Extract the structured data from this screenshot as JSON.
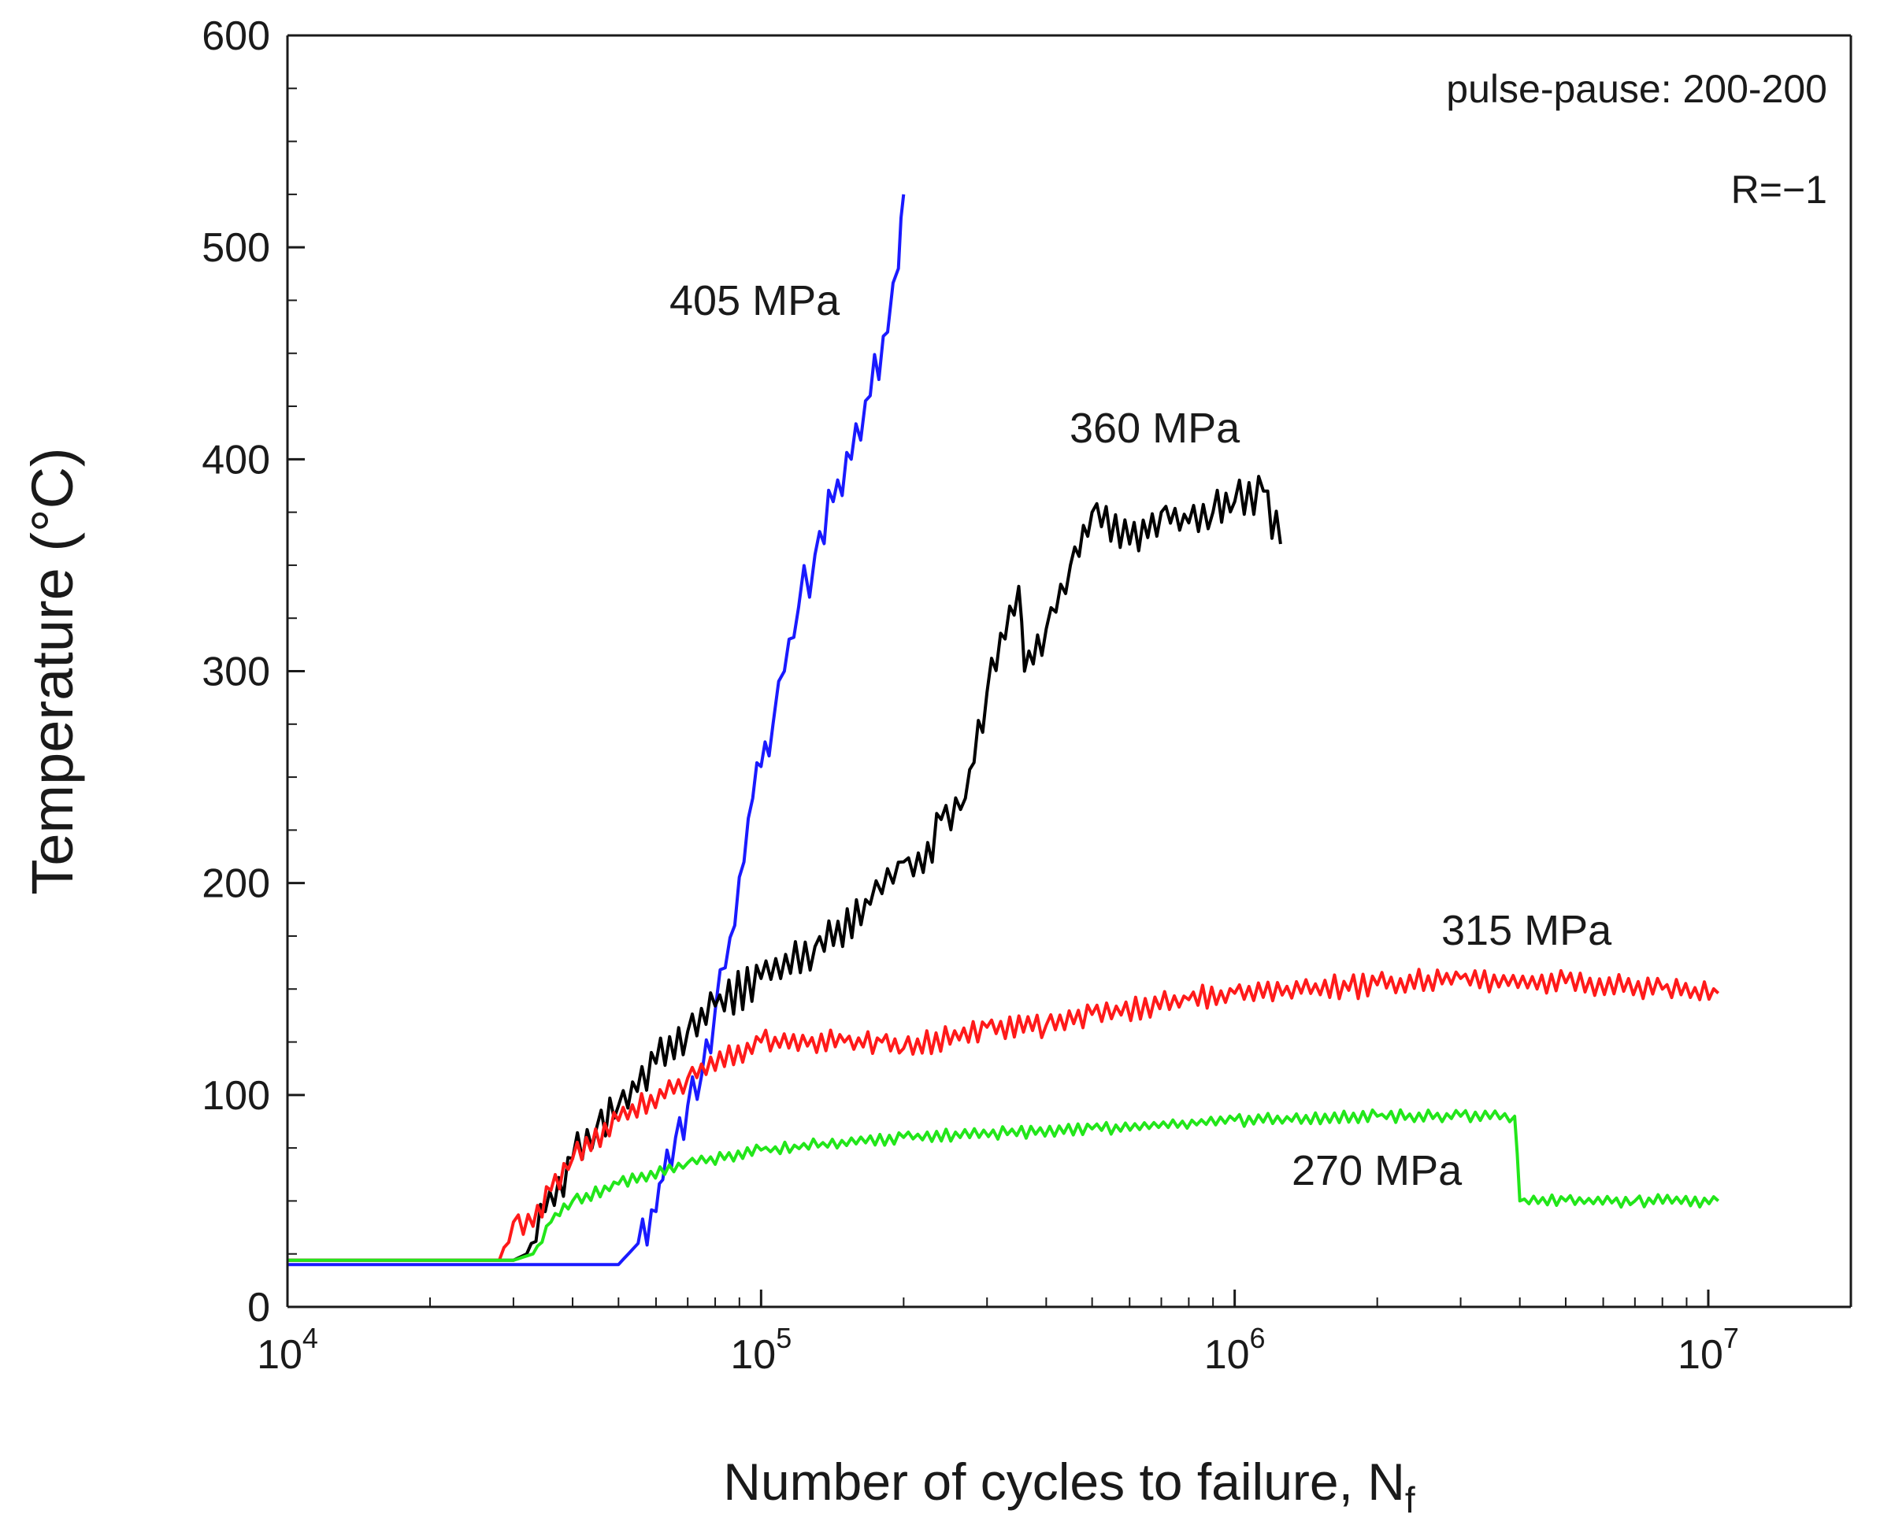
{
  "chart_data": {
    "type": "line",
    "title": "",
    "xlabel": "Number of cycles to failure, N",
    "xlabel_subscript": "f",
    "ylabel": "Temperature (°C)",
    "xscale": "log",
    "xlim": [
      10000,
      20000000
    ],
    "ylim": [
      0,
      600
    ],
    "x_ticks": [
      {
        "base": "10",
        "exp": "4"
      },
      {
        "base": "10",
        "exp": "5"
      },
      {
        "base": "10",
        "exp": "6"
      },
      {
        "base": "10",
        "exp": "7"
      }
    ],
    "y_ticks": [
      "0",
      "100",
      "200",
      "300",
      "400",
      "500",
      "600"
    ],
    "grid": false,
    "annotations": [
      "pulse-pause: 200-200",
      "R=−1"
    ],
    "series": [
      {
        "name": "405 MPa",
        "color": "#1a1aff",
        "points": [
          [
            10000,
            20
          ],
          [
            20000,
            20
          ],
          [
            30000,
            20
          ],
          [
            40000,
            20
          ],
          [
            50000,
            20
          ],
          [
            55000,
            30
          ],
          [
            60000,
            45
          ],
          [
            62000,
            60
          ],
          [
            66000,
            80
          ],
          [
            70000,
            95
          ],
          [
            75000,
            110
          ],
          [
            80000,
            140
          ],
          [
            84000,
            160
          ],
          [
            88000,
            180
          ],
          [
            92000,
            210
          ],
          [
            96000,
            240
          ],
          [
            100000,
            255
          ],
          [
            106000,
            275
          ],
          [
            112000,
            300
          ],
          [
            120000,
            330
          ],
          [
            130000,
            355
          ],
          [
            142000,
            380
          ],
          [
            155000,
            400
          ],
          [
            170000,
            430
          ],
          [
            185000,
            460
          ],
          [
            195000,
            490
          ],
          [
            200000,
            525
          ]
        ],
        "noise": 12,
        "label_x": 340,
        "label_y": 490
      },
      {
        "name": "360 MPa",
        "color": "#000000",
        "points": [
          [
            10000,
            22
          ],
          [
            20000,
            22
          ],
          [
            30000,
            22
          ],
          [
            32000,
            25
          ],
          [
            35000,
            45
          ],
          [
            40000,
            70
          ],
          [
            45000,
            85
          ],
          [
            50000,
            95
          ],
          [
            60000,
            115
          ],
          [
            70000,
            130
          ],
          [
            80000,
            142
          ],
          [
            100000,
            155
          ],
          [
            130000,
            170
          ],
          [
            170000,
            190
          ],
          [
            180000,
            195
          ],
          [
            190000,
            200
          ],
          [
            200000,
            210
          ],
          [
            220000,
            205
          ],
          [
            240000,
            230
          ],
          [
            270000,
            240
          ],
          [
            300000,
            290
          ],
          [
            350000,
            340
          ],
          [
            360000,
            300
          ],
          [
            400000,
            320
          ],
          [
            450000,
            350
          ],
          [
            500000,
            375
          ],
          [
            600000,
            360
          ],
          [
            700000,
            375
          ],
          [
            800000,
            370
          ],
          [
            900000,
            375
          ],
          [
            1000000,
            380
          ],
          [
            1150000,
            385
          ],
          [
            1250000,
            360
          ]
        ],
        "noise": 10,
        "label_x": 1350000,
        "label_y": 400
      },
      {
        "name": "315 MPa",
        "color": "#ff1a1a",
        "points": [
          [
            10000,
            22
          ],
          [
            20000,
            22
          ],
          [
            28000,
            22
          ],
          [
            30000,
            40
          ],
          [
            33000,
            38
          ],
          [
            36000,
            55
          ],
          [
            40000,
            70
          ],
          [
            50000,
            88
          ],
          [
            70000,
            108
          ],
          [
            100000,
            125
          ],
          [
            150000,
            125
          ],
          [
            180000,
            125
          ],
          [
            200000,
            122
          ],
          [
            300000,
            132
          ],
          [
            400000,
            133
          ],
          [
            500000,
            138
          ],
          [
            800000,
            145
          ],
          [
            1000000,
            148
          ],
          [
            2000000,
            152
          ],
          [
            3000000,
            155
          ],
          [
            5000000,
            153
          ],
          [
            8000000,
            150
          ],
          [
            10500000,
            148
          ]
        ],
        "noise": 6,
        "label_x": 5200000,
        "label_y": 170
      },
      {
        "name": "270 MPa",
        "color": "#22e61a",
        "points": [
          [
            10000,
            22
          ],
          [
            30000,
            22
          ],
          [
            33000,
            25
          ],
          [
            36000,
            40
          ],
          [
            40000,
            50
          ],
          [
            50000,
            58
          ],
          [
            70000,
            68
          ],
          [
            100000,
            74
          ],
          [
            200000,
            80
          ],
          [
            500000,
            84
          ],
          [
            1000000,
            88
          ],
          [
            2000000,
            90
          ],
          [
            3000000,
            90
          ],
          [
            3900000,
            90
          ],
          [
            4000000,
            50
          ],
          [
            5000000,
            50
          ],
          [
            7000000,
            50
          ],
          [
            10500000,
            50
          ]
        ],
        "noise": 3,
        "label_x": 1500000,
        "label_y": 63
      }
    ]
  }
}
